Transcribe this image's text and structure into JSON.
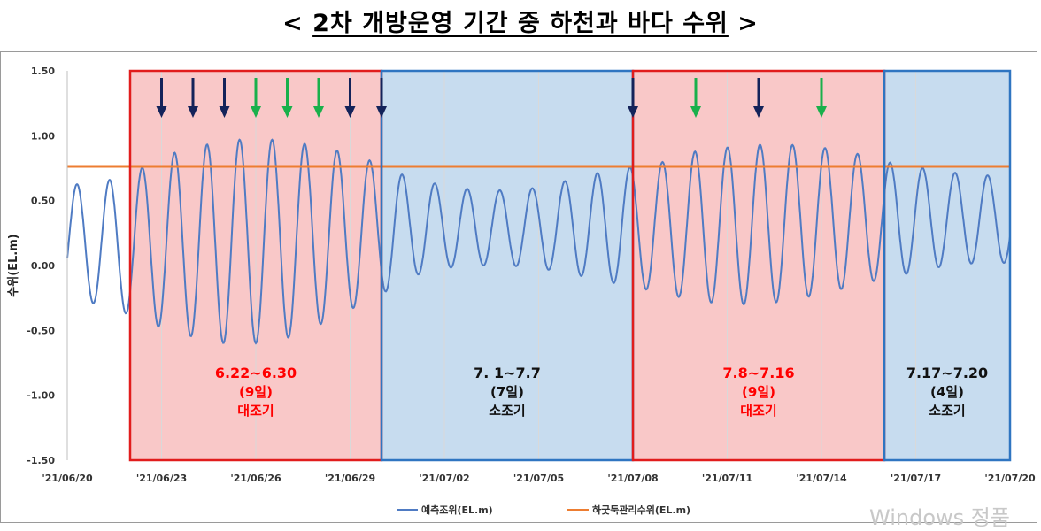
{
  "title": {
    "open": "< ",
    "main": "2차 개방운영 기간 중 하천과 바다 수위",
    "close": " >"
  },
  "watermark": "Windows 정품",
  "colors": {
    "tide_line": "#4F7BC3",
    "limit_line": "#ED7D31",
    "spring_fill": "#F9C8C8",
    "spring_border": "#E11C1C",
    "neap_fill": "#C7DCEF",
    "neap_border": "#2F75C1",
    "arrow_navy": "#14235A",
    "arrow_green": "#19B04B",
    "red_text": "#FF0000",
    "grid": "#D9D9D9"
  },
  "chart_data": {
    "type": "line",
    "ylabel": "수위(EL.m)",
    "ylim": [
      -1.5,
      1.5
    ],
    "yticks": [
      "1.50",
      "1.00",
      "0.50",
      "0.00",
      "-0.50",
      "-1.00",
      "-1.50"
    ],
    "yticks_values": [
      1.5,
      1.0,
      0.5,
      0.0,
      -0.5,
      -1.0,
      -1.5
    ],
    "xlim": [
      "2021-06-20",
      "2021-07-20"
    ],
    "xticks": [
      "'21/06/20",
      "'21/06/23",
      "'21/06/26",
      "'21/06/29",
      "'21/07/02",
      "'21/07/05",
      "'21/07/08",
      "'21/07/11",
      "'21/07/14",
      "'21/07/17",
      "'21/07/20"
    ],
    "xticks_dates": [
      "2021-06-20",
      "2021-06-23",
      "2021-06-26",
      "2021-06-29",
      "2021-07-02",
      "2021-07-05",
      "2021-07-08",
      "2021-07-11",
      "2021-07-14",
      "2021-07-17",
      "2021-07-20"
    ],
    "grid": "vertical",
    "legend_position": "bottom",
    "series": [
      {
        "name": "예측조위(EL.m)",
        "kind": "tide",
        "high_tides": [
          [
            "2021-06-20",
            0.62
          ],
          [
            "2021-06-21",
            0.64
          ],
          [
            "2021-06-22",
            0.7
          ],
          [
            "2021-06-23",
            0.84
          ],
          [
            "2021-06-24",
            0.91
          ],
          [
            "2021-06-25",
            0.96
          ],
          [
            "2021-06-26",
            0.98
          ],
          [
            "2021-06-27",
            0.96
          ],
          [
            "2021-06-28",
            0.92
          ],
          [
            "2021-06-29",
            0.86
          ],
          [
            "2021-06-30",
            0.78
          ],
          [
            "2021-07-01",
            0.66
          ],
          [
            "2021-07-02",
            0.62
          ],
          [
            "2021-07-03",
            0.58
          ],
          [
            "2021-07-04",
            0.58
          ],
          [
            "2021-07-05",
            0.6
          ],
          [
            "2021-07-06",
            0.66
          ],
          [
            "2021-07-07",
            0.72
          ],
          [
            "2021-07-08",
            0.76
          ],
          [
            "2021-07-09",
            0.8
          ],
          [
            "2021-07-10",
            0.88
          ],
          [
            "2021-07-11",
            0.91
          ],
          [
            "2021-07-12",
            0.93
          ],
          [
            "2021-07-13",
            0.93
          ],
          [
            "2021-07-14",
            0.91
          ],
          [
            "2021-07-15",
            0.87
          ],
          [
            "2021-07-16",
            0.8
          ],
          [
            "2021-07-17",
            0.76
          ],
          [
            "2021-07-18",
            0.72
          ],
          [
            "2021-07-19",
            0.7
          ],
          [
            "2021-07-20",
            0.68
          ]
        ],
        "low_tides": [
          [
            "2021-06-20",
            -0.25
          ],
          [
            "2021-06-21",
            -0.3
          ],
          [
            "2021-06-22",
            -0.38
          ],
          [
            "2021-06-23",
            -0.48
          ],
          [
            "2021-06-24",
            -0.55
          ],
          [
            "2021-06-25",
            -0.6
          ],
          [
            "2021-06-26",
            -0.6
          ],
          [
            "2021-06-27",
            -0.56
          ],
          [
            "2021-06-28",
            -0.46
          ],
          [
            "2021-06-29",
            -0.34
          ],
          [
            "2021-06-30",
            -0.22
          ],
          [
            "2021-07-01",
            -0.08
          ],
          [
            "2021-07-02",
            -0.02
          ],
          [
            "2021-07-03",
            0.0
          ],
          [
            "2021-07-04",
            0.0
          ],
          [
            "2021-07-05",
            -0.02
          ],
          [
            "2021-07-06",
            -0.06
          ],
          [
            "2021-07-07",
            -0.12
          ],
          [
            "2021-07-08",
            -0.16
          ],
          [
            "2021-07-09",
            -0.22
          ],
          [
            "2021-07-10",
            -0.27
          ],
          [
            "2021-07-11",
            -0.3
          ],
          [
            "2021-07-12",
            -0.3
          ],
          [
            "2021-07-13",
            -0.27
          ],
          [
            "2021-07-14",
            -0.22
          ],
          [
            "2021-07-15",
            -0.16
          ],
          [
            "2021-07-16",
            -0.1
          ],
          [
            "2021-07-17",
            -0.05
          ],
          [
            "2021-07-18",
            0.0
          ],
          [
            "2021-07-19",
            0.02
          ],
          [
            "2021-07-20",
            0.02
          ]
        ]
      },
      {
        "name": "하굿둑관리수위(EL.m)",
        "kind": "constant",
        "value": 0.76
      }
    ],
    "periods": [
      {
        "start": "2021-06-22",
        "end": "2021-06-30",
        "type": "spring",
        "range": "6.22~6.30",
        "days": "(9일)",
        "label": "대조기"
      },
      {
        "start": "2021-06-30",
        "end": "2021-07-08",
        "type": "neap",
        "range": "7. 1~7.7",
        "days": "(7일)",
        "label": "소조기"
      },
      {
        "start": "2021-07-08",
        "end": "2021-07-16",
        "type": "spring",
        "range": "7.8~7.16",
        "days": "(9일)",
        "label": "대조기"
      },
      {
        "start": "2021-07-16",
        "end": "2021-07-20",
        "type": "neap",
        "range": "7.17~7.20",
        "days": "(4일)",
        "label": "소조기"
      }
    ],
    "arrows": [
      {
        "date": "2021-06-23",
        "color": "navy"
      },
      {
        "date": "2021-06-24",
        "color": "navy"
      },
      {
        "date": "2021-06-25",
        "color": "navy"
      },
      {
        "date": "2021-06-26",
        "color": "green"
      },
      {
        "date": "2021-06-27",
        "color": "green"
      },
      {
        "date": "2021-06-28",
        "color": "green"
      },
      {
        "date": "2021-06-29",
        "color": "navy"
      },
      {
        "date": "2021-06-30",
        "color": "navy"
      },
      {
        "date": "2021-07-08",
        "color": "navy"
      },
      {
        "date": "2021-07-10",
        "color": "green"
      },
      {
        "date": "2021-07-12",
        "color": "navy"
      },
      {
        "date": "2021-07-14",
        "color": "green"
      }
    ]
  }
}
